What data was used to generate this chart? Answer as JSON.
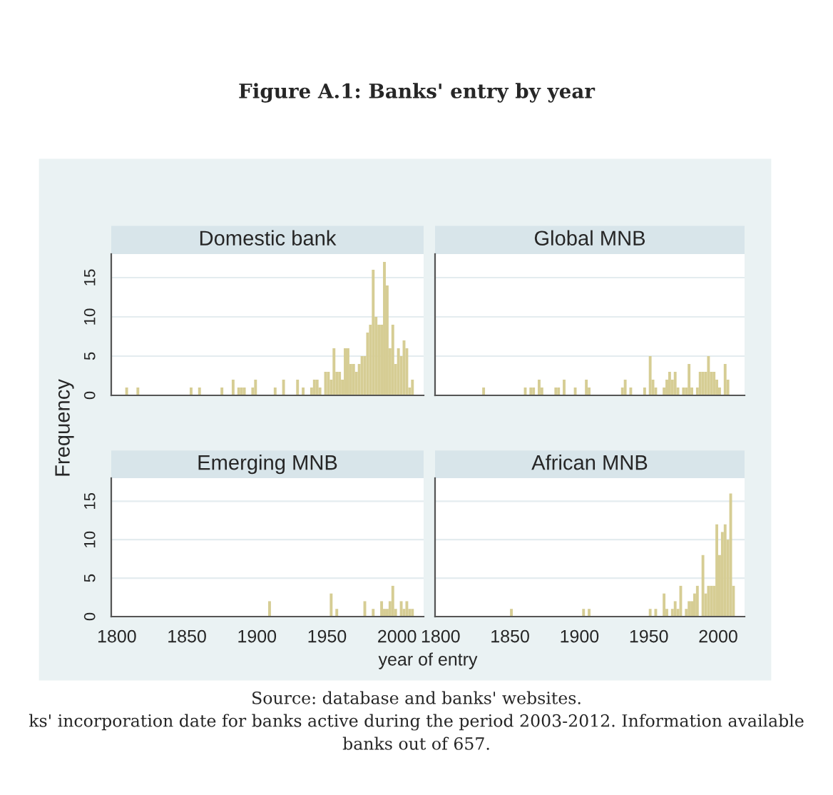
{
  "chart_data": [
    {
      "type": "histogram",
      "title": "Domestic bank",
      "color": "#d6cd94",
      "xlabel": "year of entry",
      "ylabel": "Frequency",
      "annotations": [
        "Figure A.1: Banks' entry by year",
        "Source: database and banks' websites.",
        "ks' incorporation date for banks active during the period 2003-2012. Information available",
        "banks out of 657."
      ],
      "bins": [
        1806,
        1808,
        1814,
        1816,
        1852,
        1854,
        1858,
        1860,
        1874,
        1876,
        1882,
        1884,
        1886,
        1888,
        1890,
        1892,
        1896,
        1898,
        1900,
        1912,
        1914,
        1918,
        1920,
        1928,
        1930,
        1932,
        1934,
        1938,
        1940,
        1942,
        1944,
        1946,
        1948,
        1950,
        1952,
        1954,
        1956,
        1958,
        1960,
        1962,
        1964,
        1966,
        1968,
        1970,
        1972,
        1974,
        1976,
        1978,
        1980,
        1982,
        1984,
        1986,
        1988,
        1990,
        1992,
        1994,
        1996,
        1998,
        2000,
        2002,
        2004,
        2006,
        2008,
        2010,
        2012
      ],
      "values": [
        1,
        0,
        1,
        0,
        1,
        0,
        1,
        0,
        1,
        0,
        2,
        0,
        1,
        1,
        1,
        0,
        1,
        2,
        0,
        1,
        0,
        2,
        0,
        2,
        0,
        1,
        0,
        1,
        2,
        2,
        1,
        0,
        3,
        3,
        2,
        6,
        3,
        3,
        2,
        6,
        6,
        4,
        4,
        3,
        4,
        5,
        5,
        8,
        9,
        16,
        10,
        9,
        9,
        17,
        14,
        6,
        9,
        4,
        6,
        5,
        7,
        6,
        1,
        2
      ],
      "xlim": [
        1796,
        2019
      ],
      "ylim": [
        0,
        18
      ],
      "xticks": [
        1800,
        1850,
        1900,
        1950,
        2000
      ],
      "yticks": [
        0,
        5,
        10,
        15
      ],
      "grid": "y",
      "tick_labels": "y"
    },
    {
      "type": "histogram",
      "title": "Global MNB",
      "color": "#d6cd94",
      "bins": [
        1830,
        1832,
        1860,
        1862,
        1864,
        1866,
        1868,
        1870,
        1872,
        1874,
        1882,
        1884,
        1886,
        1888,
        1890,
        1896,
        1898,
        1904,
        1906,
        1908,
        1930,
        1932,
        1934,
        1936,
        1938,
        1946,
        1948,
        1950,
        1952,
        1954,
        1956,
        1960,
        1962,
        1964,
        1966,
        1968,
        1970,
        1972,
        1974,
        1976,
        1978,
        1980,
        1982,
        1984,
        1986,
        1988,
        1990,
        1992,
        1994,
        1996,
        1998,
        2000,
        2002,
        2004,
        2006,
        2008
      ],
      "values": [
        1,
        0,
        1,
        0,
        1,
        1,
        0,
        2,
        1,
        0,
        1,
        1,
        0,
        2,
        0,
        1,
        0,
        2,
        1,
        0,
        1,
        2,
        0,
        1,
        0,
        1,
        0,
        5,
        2,
        1,
        0,
        1,
        2,
        3,
        2,
        3,
        1,
        0,
        1,
        1,
        4,
        1,
        0,
        1,
        3,
        3,
        3,
        5,
        3,
        3,
        2,
        1,
        0,
        4,
        2
      ],
      "xlim": [
        1796,
        2019
      ],
      "ylim": [
        0,
        18
      ],
      "xticks": [
        1800,
        1850,
        1900,
        1950,
        2000
      ],
      "yticks": [
        0,
        5,
        10,
        15
      ],
      "grid": "y",
      "tick_labels": false
    },
    {
      "type": "histogram",
      "title": "Emerging MNB",
      "color": "#d6cd94",
      "bins": [
        1908,
        1910,
        1952,
        1954,
        1956,
        1958,
        1976,
        1978,
        1982,
        1984,
        1988,
        1990,
        1992,
        1994,
        1996,
        1998,
        2000,
        2002,
        2004,
        2006,
        2008,
        2010,
        2012
      ],
      "values": [
        2,
        0,
        3,
        0,
        1,
        0,
        2,
        0,
        1,
        0,
        2,
        1,
        1,
        2,
        4,
        1,
        0,
        2,
        1,
        2,
        1,
        1
      ],
      "xlim": [
        1796,
        2019
      ],
      "ylim": [
        0,
        18
      ],
      "xticks": [
        1800,
        1850,
        1900,
        1950,
        2000
      ],
      "yticks": [
        0,
        5,
        10,
        15
      ],
      "grid": "y"
    },
    {
      "type": "histogram",
      "title": "African MNB",
      "color": "#d6cd94",
      "bins": [
        1850,
        1852,
        1902,
        1904,
        1906,
        1908,
        1950,
        1952,
        1954,
        1956,
        1960,
        1962,
        1964,
        1966,
        1968,
        1970,
        1972,
        1974,
        1976,
        1978,
        1980,
        1982,
        1984,
        1986,
        1988,
        1990,
        1992,
        1994,
        1996,
        1998,
        2000,
        2002,
        2004,
        2006,
        2008,
        2010,
        2012
      ],
      "values": [
        1,
        0,
        1,
        0,
        1,
        0,
        1,
        0,
        1,
        0,
        3,
        1,
        0,
        1,
        2,
        1,
        4,
        0,
        1,
        2,
        2,
        3,
        4,
        0,
        8,
        3,
        4,
        4,
        4,
        12,
        8,
        11,
        12,
        10,
        16,
        4
      ],
      "xlim": [
        1796,
        2019
      ],
      "ylim": [
        0,
        18
      ],
      "xticks": [
        1800,
        1850,
        1900,
        1950,
        2000
      ],
      "yticks": [
        0,
        5,
        10,
        15
      ],
      "grid": "y",
      "tick_labels": "x"
    }
  ]
}
